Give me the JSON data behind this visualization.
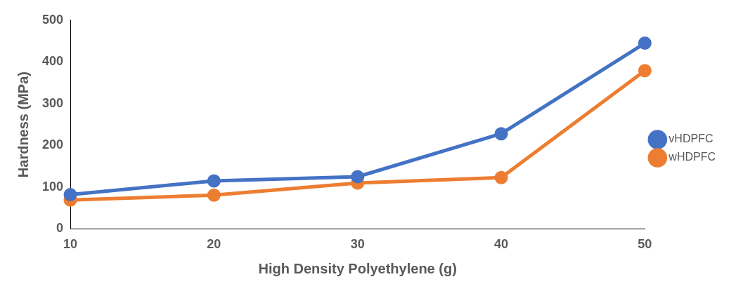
{
  "chart_data": {
    "type": "line",
    "xlabel": "High Density Polyethylene (g)",
    "ylabel": "Hardness (MPa)",
    "categories": [
      "10",
      "20",
      "30",
      "40",
      "50"
    ],
    "series": [
      {
        "name": "vHDPFC",
        "color": "#4472c4",
        "values": [
          82,
          115,
          125,
          228,
          445
        ]
      },
      {
        "name": "wHDPFC",
        "color": "#ed7d31",
        "values": [
          69,
          81,
          110,
          123,
          379
        ]
      }
    ],
    "ylim": [
      0,
      500
    ],
    "yticks": [
      0,
      100,
      200,
      300,
      400,
      500
    ],
    "grid": false,
    "legend": "right",
    "marker": "circle",
    "line_style": "solid"
  }
}
